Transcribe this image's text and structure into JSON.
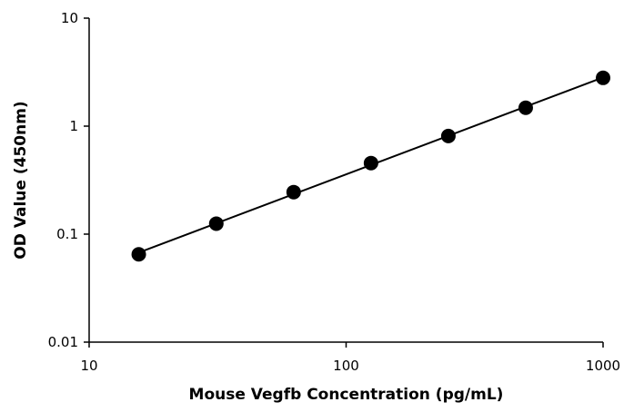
{
  "chart_data": {
    "type": "scatter",
    "title": "",
    "xlabel": "Mouse Vegfb Concentration (pg/mL)",
    "ylabel": "OD Value (450nm)",
    "x_scale": "log",
    "y_scale": "log",
    "xlim": [
      10,
      1000
    ],
    "ylim": [
      0.01,
      10
    ],
    "x_ticks": [
      "10",
      "100",
      "1000"
    ],
    "y_ticks": [
      "0.01",
      "0.1",
      "1",
      "10"
    ],
    "grid": false,
    "legend": "none",
    "series": [
      {
        "x": [
          15.6,
          31.25,
          62.5,
          125,
          250,
          500,
          1000
        ],
        "y": [
          0.065,
          0.125,
          0.245,
          0.455,
          0.81,
          1.48,
          2.8
        ],
        "color": "#000000",
        "fit_line": true
      }
    ]
  }
}
